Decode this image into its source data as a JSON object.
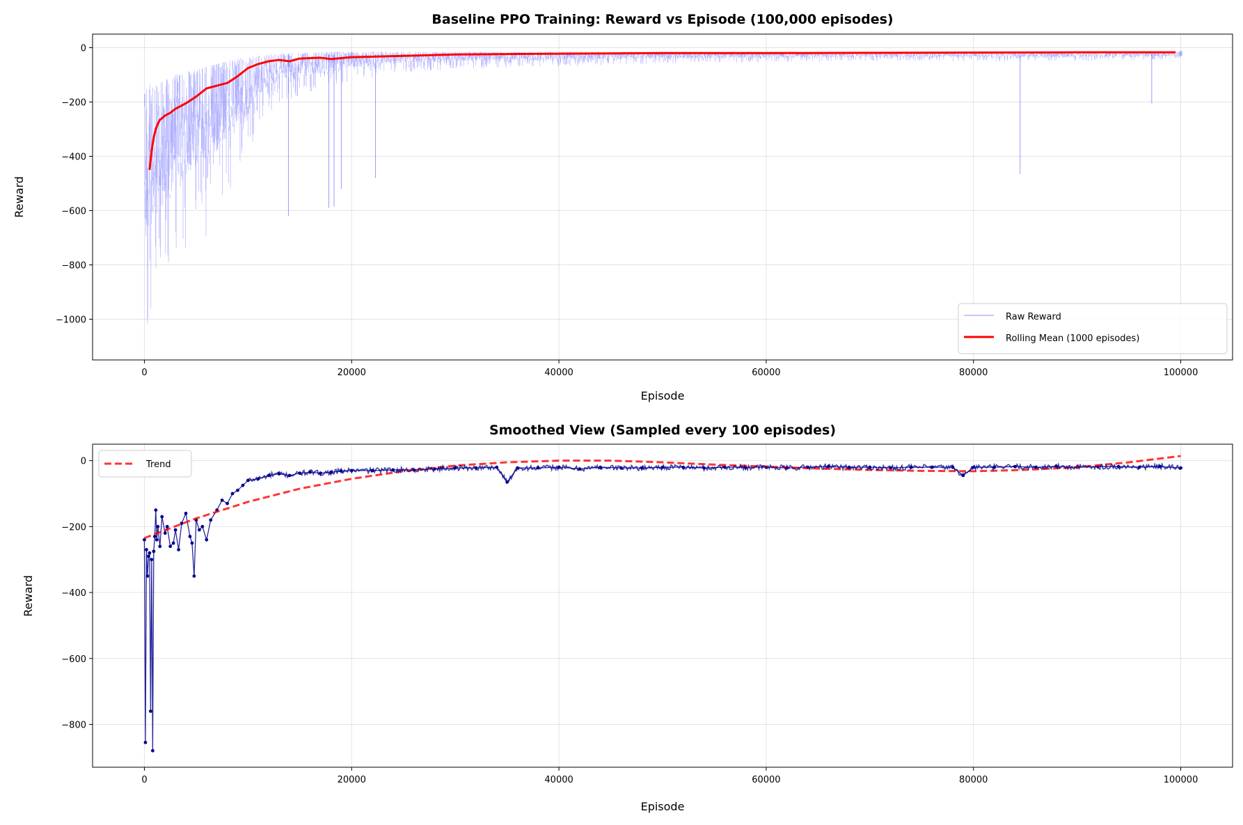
{
  "chart_data": [
    {
      "type": "line",
      "title": "Baseline PPO Training: Reward vs Episode (100,000 episodes)",
      "xlabel": "Episode",
      "ylabel": "Reward",
      "xlim": [
        -5000,
        105000
      ],
      "ylim": [
        -1150,
        50
      ],
      "xticks": [
        0,
        20000,
        40000,
        60000,
        80000,
        100000
      ],
      "yticks": [
        -1000,
        -800,
        -600,
        -400,
        -200,
        0
      ],
      "grid": true,
      "legend": "lower-right",
      "series": [
        {
          "name": "Raw Reward",
          "color": "#0000ff",
          "style": "thin-line-alpha",
          "envelope": {
            "x": [
              0,
              300,
              600,
              1000,
              1500,
              2000,
              3000,
              4000,
              5000,
              6000,
              7000,
              8000,
              9000,
              10000,
              11000,
              12000,
              13000,
              15000,
              18000,
              20000,
              22000,
              25000,
              30000,
              40000,
              50000,
              60000,
              70000,
              80000,
              90000,
              100000
            ],
            "upper": [
              -170,
              -140,
              -135,
              -130,
              -125,
              -120,
              -100,
              -90,
              -80,
              -70,
              -60,
              -50,
              -40,
              -35,
              -30,
              -25,
              -20,
              -20,
              -15,
              -15,
              -15,
              -15,
              -15,
              -15,
              -15,
              -15,
              -15,
              -15,
              -15,
              -15
            ],
            "lower": [
              -1050,
              -1100,
              -1040,
              -950,
              -900,
              -920,
              -880,
              -780,
              -740,
              -700,
              -650,
              -560,
              -450,
              -400,
              -300,
              -250,
              -200,
              -180,
              -150,
              -120,
              -110,
              -90,
              -80,
              -70,
              -60,
              -55,
              -50,
              -50,
              -50,
              -45
            ]
          },
          "spikes": [
            {
              "x": 13900,
              "y": -620
            },
            {
              "x": 17800,
              "y": -590
            },
            {
              "x": 18300,
              "y": -585
            },
            {
              "x": 19000,
              "y": -520
            },
            {
              "x": 22300,
              "y": -480
            },
            {
              "x": 84500,
              "y": -465
            },
            {
              "x": 97200,
              "y": -205
            }
          ]
        },
        {
          "name": "Rolling Mean (1000 episodes)",
          "color": "#ff0000",
          "x": [
            500,
            700,
            900,
            1100,
            1300,
            1500,
            1700,
            2000,
            2500,
            3000,
            4000,
            5000,
            6000,
            7000,
            8000,
            9000,
            10000,
            11000,
            12000,
            13000,
            14000,
            15000,
            17000,
            18000,
            20000,
            25000,
            30000,
            40000,
            50000,
            60000,
            70000,
            80000,
            90000,
            99500
          ],
          "y": [
            -450,
            -380,
            -330,
            -300,
            -280,
            -265,
            -260,
            -250,
            -240,
            -225,
            -205,
            -180,
            -150,
            -140,
            -130,
            -105,
            -75,
            -60,
            -50,
            -45,
            -50,
            -40,
            -37,
            -42,
            -35,
            -30,
            -25,
            -22,
            -20,
            -20,
            -19,
            -18,
            -17,
            -17
          ]
        }
      ]
    },
    {
      "type": "line",
      "title": "Smoothed View (Sampled every 100 episodes)",
      "xlabel": "Episode",
      "ylabel": "Reward",
      "xlim": [
        -5000,
        105000
      ],
      "ylim": [
        -930,
        50
      ],
      "xticks": [
        0,
        20000,
        40000,
        60000,
        80000,
        100000
      ],
      "yticks": [
        -800,
        -600,
        -400,
        -200,
        0
      ],
      "grid": true,
      "legend": "top-left",
      "series": [
        {
          "name": "",
          "color": "#00008b",
          "style": "line-with-dots",
          "x": [
            0,
            100,
            200,
            300,
            400,
            500,
            600,
            700,
            800,
            900,
            1000,
            1100,
            1200,
            1300,
            1500,
            1700,
            2000,
            2200,
            2500,
            2800,
            3000,
            3300,
            3600,
            4000,
            4400,
            4600,
            4800,
            5000,
            5300,
            5600,
            6000,
            6400,
            7000,
            7500,
            8000,
            8500,
            9000,
            9500,
            10000,
            11000,
            12000,
            13000,
            14000,
            15000,
            16000,
            17000,
            18000,
            19000,
            20000,
            22000,
            24000,
            26000,
            28000,
            30000,
            32000,
            34000,
            35000,
            36000,
            38000,
            40000,
            42000,
            44000,
            46000,
            48000,
            50000,
            52000,
            54000,
            56000,
            58000,
            60000,
            62000,
            64000,
            66000,
            68000,
            70000,
            72000,
            74000,
            76000,
            78000,
            79000,
            80000,
            82000,
            84000,
            86000,
            88000,
            90000,
            92000,
            94000,
            96000,
            98000,
            100000
          ],
          "y": [
            -240,
            -855,
            -270,
            -350,
            -290,
            -280,
            -760,
            -300,
            -880,
            -275,
            -230,
            -150,
            -240,
            -200,
            -260,
            -170,
            -220,
            -200,
            -260,
            -250,
            -210,
            -270,
            -190,
            -160,
            -230,
            -250,
            -350,
            -180,
            -210,
            -200,
            -240,
            -180,
            -150,
            -120,
            -130,
            -100,
            -90,
            -75,
            -60,
            -55,
            -45,
            -40,
            -45,
            -38,
            -35,
            -38,
            -35,
            -32,
            -30,
            -30,
            -28,
            -28,
            -25,
            -22,
            -22,
            -20,
            -65,
            -22,
            -22,
            -20,
            -25,
            -20,
            -22,
            -22,
            -20,
            -20,
            -22,
            -20,
            -20,
            -20,
            -22,
            -20,
            -18,
            -20,
            -20,
            -22,
            -20,
            -20,
            -20,
            -45,
            -20,
            -20,
            -18,
            -20,
            -18,
            -20,
            -18,
            -18,
            -20,
            -18,
            -22
          ]
        },
        {
          "name": "Trend",
          "color": "#ff0000",
          "style": "dashed",
          "x": [
            0,
            5000,
            10000,
            15000,
            20000,
            25000,
            30000,
            35000,
            40000,
            45000,
            50000,
            55000,
            60000,
            65000,
            70000,
            75000,
            80000,
            85000,
            90000,
            95000,
            100000
          ],
          "y": [
            -235,
            -175,
            -125,
            -85,
            -55,
            -32,
            -15,
            -5,
            0,
            0,
            -5,
            -12,
            -18,
            -24,
            -28,
            -31,
            -32,
            -28,
            -20,
            -5,
            14
          ]
        }
      ]
    }
  ]
}
